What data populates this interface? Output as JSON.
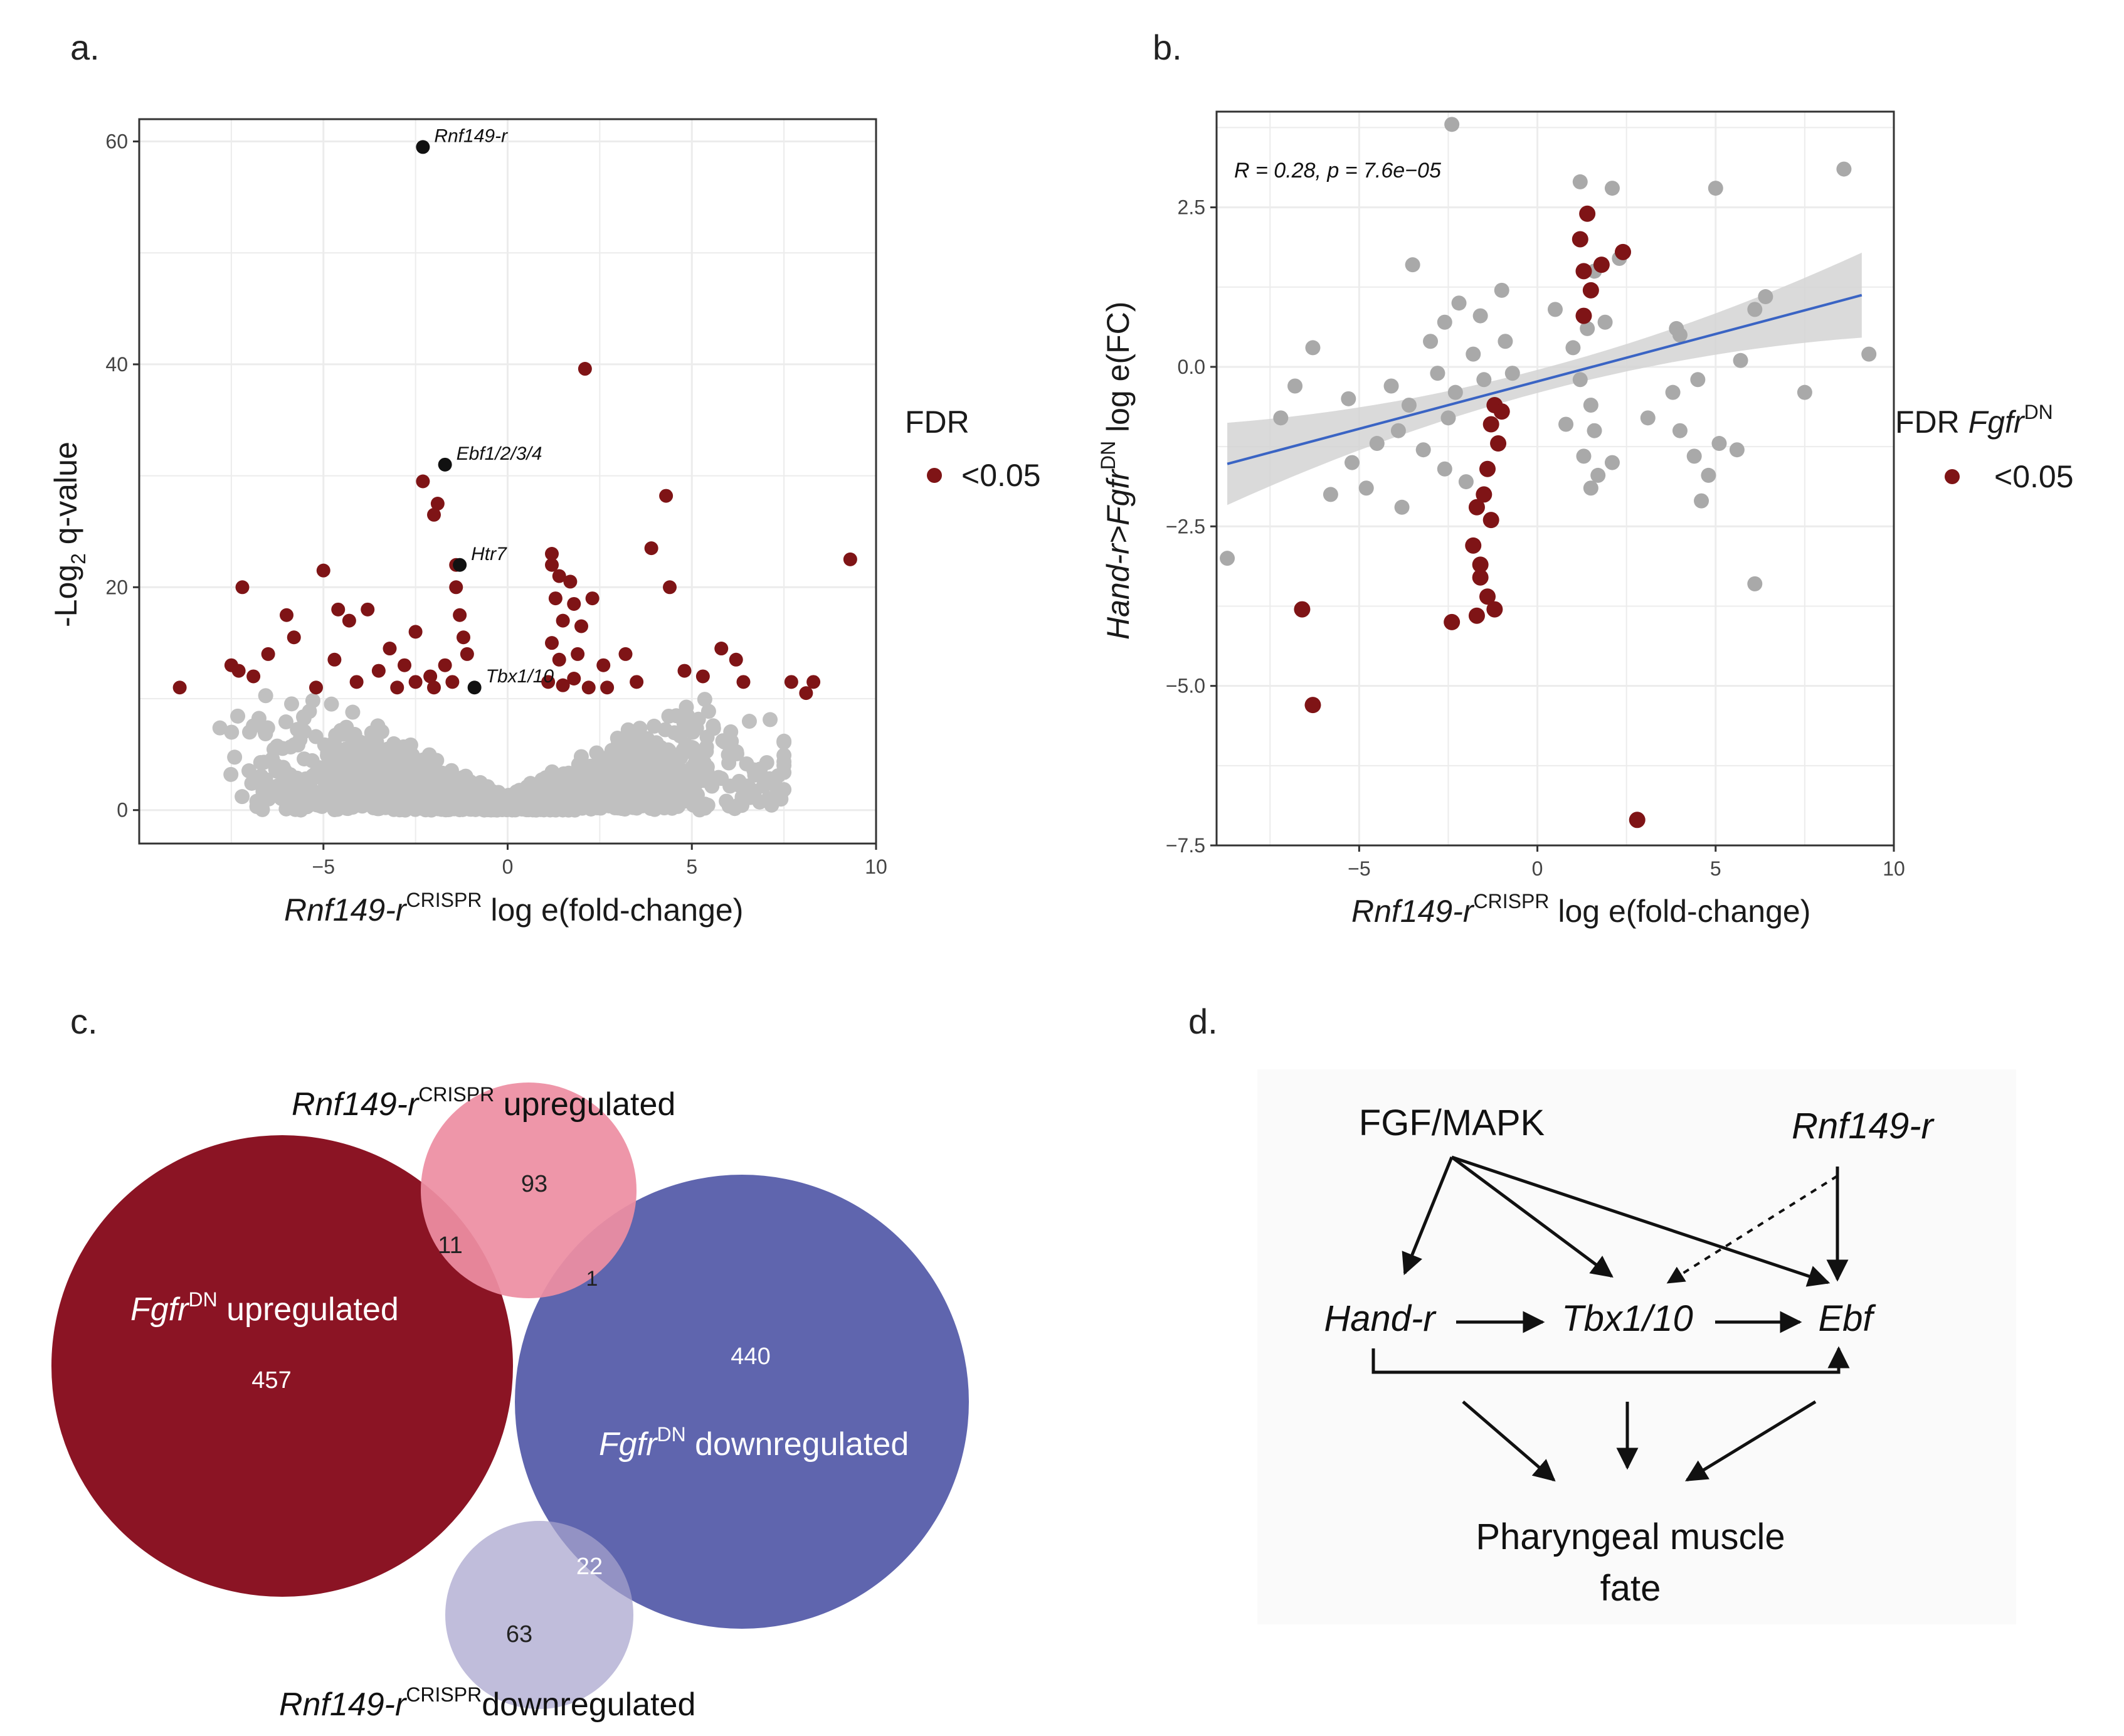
{
  "panels": {
    "a": "a.",
    "b": "b.",
    "c": "c.",
    "d": "d."
  },
  "chart_data": [
    {
      "type": "scatter",
      "subtype": "volcano",
      "panel": "a",
      "xlabel": {
        "gene": "Rnf149-r",
        "sup": "CRISPR",
        "rest": " log e(fold-change)"
      },
      "ylabel": {
        "pre": "-Log",
        "sub": "2",
        "rest": " q-value"
      },
      "xlim": [
        -10,
        10
      ],
      "ylim": [
        -3,
        62
      ],
      "xticks": [
        -5,
        0,
        5,
        10
      ],
      "yticks": [
        0,
        20,
        40,
        60
      ],
      "grid": true,
      "legend": {
        "title": "FDR",
        "entries": [
          "<0.05"
        ],
        "placement": "right"
      },
      "colors": {
        "significant": "#7f1416",
        "labeled": "#111111",
        "background": "#c0c0c0"
      },
      "labeled_points": [
        {
          "name": "Rnf149-r",
          "x": -2.3,
          "y": 59.5
        },
        {
          "name": "Ebf1/2/3/4",
          "x": -1.7,
          "y": 31
        },
        {
          "name": "Htr7",
          "x": -1.3,
          "y": 22
        },
        {
          "name": "Tbx1/10",
          "x": -0.9,
          "y": 11
        }
      ],
      "significant_points": [
        [
          2.1,
          39.6
        ],
        [
          -2.3,
          29.5
        ],
        [
          -2.0,
          26.5
        ],
        [
          -1.9,
          27.5
        ],
        [
          4.3,
          28.2
        ],
        [
          -5.0,
          21.5
        ],
        [
          3.9,
          23.5
        ],
        [
          -7.2,
          20.0
        ],
        [
          4.4,
          20.0
        ],
        [
          -6.0,
          17.5
        ],
        [
          -4.6,
          18.0
        ],
        [
          -3.8,
          18.0
        ],
        [
          -4.3,
          17.0
        ],
        [
          -2.5,
          16.0
        ],
        [
          -1.4,
          20.0
        ],
        [
          -1.3,
          17.5
        ],
        [
          -1.2,
          15.5
        ],
        [
          -1.1,
          14.0
        ],
        [
          1.2,
          23.0
        ],
        [
          1.4,
          21.0
        ],
        [
          1.3,
          19.0
        ],
        [
          1.5,
          17.0
        ],
        [
          1.2,
          15.0
        ],
        [
          1.4,
          13.5
        ],
        [
          1.7,
          20.5
        ],
        [
          1.8,
          18.5
        ],
        [
          2.0,
          16.5
        ],
        [
          1.9,
          14.0
        ],
        [
          2.3,
          19.0
        ],
        [
          -7.5,
          13.0
        ],
        [
          -6.9,
          12.0
        ],
        [
          -6.5,
          14.0
        ],
        [
          -5.8,
          15.5
        ],
        [
          -4.7,
          13.5
        ],
        [
          -3.5,
          12.5
        ],
        [
          -3.2,
          14.5
        ],
        [
          -2.8,
          13.0
        ],
        [
          -2.1,
          12.0
        ],
        [
          -1.7,
          13.0
        ],
        [
          2.6,
          13.0
        ],
        [
          3.2,
          14.0
        ],
        [
          3.5,
          11.5
        ],
        [
          4.8,
          12.5
        ],
        [
          5.3,
          12.0
        ],
        [
          5.8,
          14.5
        ],
        [
          6.2,
          13.5
        ],
        [
          6.4,
          11.5
        ],
        [
          7.7,
          11.5
        ],
        [
          8.3,
          11.5
        ],
        [
          8.1,
          10.5
        ],
        [
          9.3,
          22.5
        ],
        [
          -8.9,
          11.0
        ],
        [
          -7.3,
          12.5
        ],
        [
          -5.2,
          11.0
        ],
        [
          -4.1,
          11.5
        ],
        [
          -3.0,
          11.0
        ],
        [
          -2.5,
          11.5
        ],
        [
          -2.0,
          11.0
        ],
        [
          -1.5,
          11.5
        ],
        [
          1.1,
          11.5
        ],
        [
          1.5,
          11.2
        ],
        [
          1.8,
          11.8
        ],
        [
          2.2,
          11.0
        ],
        [
          2.7,
          11.0
        ],
        [
          -1.4,
          22.0
        ],
        [
          1.2,
          22.0
        ]
      ]
    },
    {
      "type": "scatter",
      "panel": "b",
      "xlabel": {
        "gene": "Rnf149-r",
        "sup": "CRISPR",
        "rest": " log e(fold-change)"
      },
      "ylabel": {
        "gene": "Hand-r>Fgfr",
        "sup": "DN",
        "rest": " log e(FC)"
      },
      "xlim": [
        -9,
        10
      ],
      "ylim": [
        -7.5,
        4.0
      ],
      "xticks": [
        -5,
        0,
        5,
        10
      ],
      "yticks": [
        2.5,
        0.0,
        -2.5,
        -5.0,
        -7.5
      ],
      "grid": true,
      "annotation": "R = 0.28, p = 7.6e−05",
      "regression": {
        "slope": 0.1486,
        "intercept": -0.228,
        "x_range": [
          -8.7,
          9.1
        ],
        "band": "gray confidence interval"
      },
      "legend": {
        "title_pre": "FDR ",
        "title_gene": "Fgfr",
        "title_sup": "DN",
        "entries": [
          "<0.05"
        ],
        "placement": "right"
      },
      "colors": {
        "significant": "#7f1416",
        "gray": "#a9a9a9",
        "line": "#3a64c4",
        "band": "#d4d4d4"
      },
      "significant_points": [
        [
          1.4,
          2.4
        ],
        [
          1.2,
          2.0
        ],
        [
          1.3,
          1.5
        ],
        [
          1.5,
          1.2
        ],
        [
          1.3,
          0.8
        ],
        [
          2.4,
          1.8
        ],
        [
          1.8,
          1.6
        ],
        [
          -1.2,
          -0.6
        ],
        [
          -1.3,
          -0.9
        ],
        [
          -1.1,
          -1.2
        ],
        [
          -1.4,
          -1.6
        ],
        [
          -1.5,
          -2.0
        ],
        [
          -1.7,
          -2.2
        ],
        [
          -1.3,
          -2.4
        ],
        [
          -1.8,
          -2.8
        ],
        [
          -1.6,
          -3.1
        ],
        [
          -1.4,
          -3.6
        ],
        [
          -1.2,
          -3.8
        ],
        [
          -1.7,
          -3.9
        ],
        [
          -2.4,
          -4.0
        ],
        [
          -6.6,
          -3.8
        ],
        [
          -6.3,
          -5.3
        ],
        [
          2.8,
          -7.1
        ],
        [
          -1.0,
          -0.7
        ],
        [
          -1.6,
          -3.3
        ]
      ],
      "gray_points": [
        [
          -2.4,
          3.8
        ],
        [
          1.2,
          2.9
        ],
        [
          2.1,
          2.8
        ],
        [
          5.0,
          2.8
        ],
        [
          8.6,
          3.1
        ],
        [
          1.6,
          1.5
        ],
        [
          2.3,
          1.7
        ],
        [
          3.9,
          0.6
        ],
        [
          4.0,
          0.5
        ],
        [
          6.4,
          1.1
        ],
        [
          6.1,
          0.9
        ],
        [
          -2.2,
          1.0
        ],
        [
          -1.6,
          0.8
        ],
        [
          -2.6,
          0.7
        ],
        [
          -3.0,
          0.4
        ],
        [
          -6.3,
          0.3
        ],
        [
          -6.8,
          -0.3
        ],
        [
          -7.2,
          -0.8
        ],
        [
          -5.3,
          -0.5
        ],
        [
          -4.1,
          -0.3
        ],
        [
          -3.6,
          -0.6
        ],
        [
          -2.8,
          -0.1
        ],
        [
          -2.3,
          -0.4
        ],
        [
          -1.8,
          0.2
        ],
        [
          -1.5,
          -0.2
        ],
        [
          -0.9,
          0.4
        ],
        [
          -0.7,
          -0.1
        ],
        [
          1.0,
          0.3
        ],
        [
          1.2,
          -0.2
        ],
        [
          1.4,
          0.6
        ],
        [
          1.5,
          -0.6
        ],
        [
          1.6,
          -1.0
        ],
        [
          1.3,
          -1.4
        ],
        [
          1.7,
          -1.7
        ],
        [
          2.1,
          -1.5
        ],
        [
          1.5,
          -1.9
        ],
        [
          3.1,
          -0.8
        ],
        [
          3.8,
          -0.4
        ],
        [
          4.5,
          -0.2
        ],
        [
          5.7,
          0.1
        ],
        [
          7.5,
          -0.4
        ],
        [
          9.3,
          0.2
        ],
        [
          4.0,
          -1.0
        ],
        [
          4.4,
          -1.4
        ],
        [
          4.8,
          -1.7
        ],
        [
          5.1,
          -1.2
        ],
        [
          5.6,
          -1.3
        ],
        [
          4.6,
          -2.1
        ],
        [
          6.1,
          -3.4
        ],
        [
          -8.7,
          -3.0
        ],
        [
          -5.8,
          -2.0
        ],
        [
          -5.2,
          -1.5
        ],
        [
          -4.5,
          -1.2
        ],
        [
          -3.9,
          -1.0
        ],
        [
          -3.2,
          -1.3
        ],
        [
          -2.6,
          -1.6
        ],
        [
          -2.0,
          -1.8
        ],
        [
          -2.5,
          -0.8
        ],
        [
          -3.5,
          1.6
        ],
        [
          -1.0,
          1.2
        ],
        [
          0.5,
          0.9
        ],
        [
          0.8,
          -0.9
        ],
        [
          1.9,
          0.7
        ],
        [
          -4.8,
          -1.9
        ],
        [
          -3.8,
          -2.2
        ]
      ]
    }
  ],
  "venn": {
    "rnf_up_label": {
      "gene": "Rnf149-r",
      "sup": "CRISPR",
      "rest": " upregulated"
    },
    "rnf_down_label": {
      "gene": "Rnf149-r",
      "sup": "CRISPR",
      "rest": "downregulated"
    },
    "fgfr_up_label": {
      "gene": "Fgfr",
      "sup": "DN",
      "rest": " upregulated"
    },
    "fgfr_down_label": {
      "gene": "Fgfr",
      "sup": "DN",
      "rest": " downregulated"
    },
    "counts": {
      "rnf_up_only": "93",
      "fgfr_up_rnf_up": "11",
      "fgfr_down_rnf_up": "1",
      "fgfr_up_only": "457",
      "fgfr_down_only": "440",
      "fgfr_down_rnf_down": "22",
      "rnf_down_only": "63"
    },
    "colors": {
      "fgfr_up": "#8b1424",
      "fgfr_down": "#5f65ae",
      "rnf_up": "#ed8ea3",
      "rnf_down": "#b8b4d6"
    }
  },
  "network": {
    "nodes": {
      "fgf": "FGF/MAPK",
      "rnf": "Rnf149-r",
      "hand": "Hand-r",
      "tbx": "Tbx1/10",
      "ebf": "Ebf",
      "fate_line1": "Pharyngeal muscle",
      "fate_line2": "fate"
    }
  }
}
